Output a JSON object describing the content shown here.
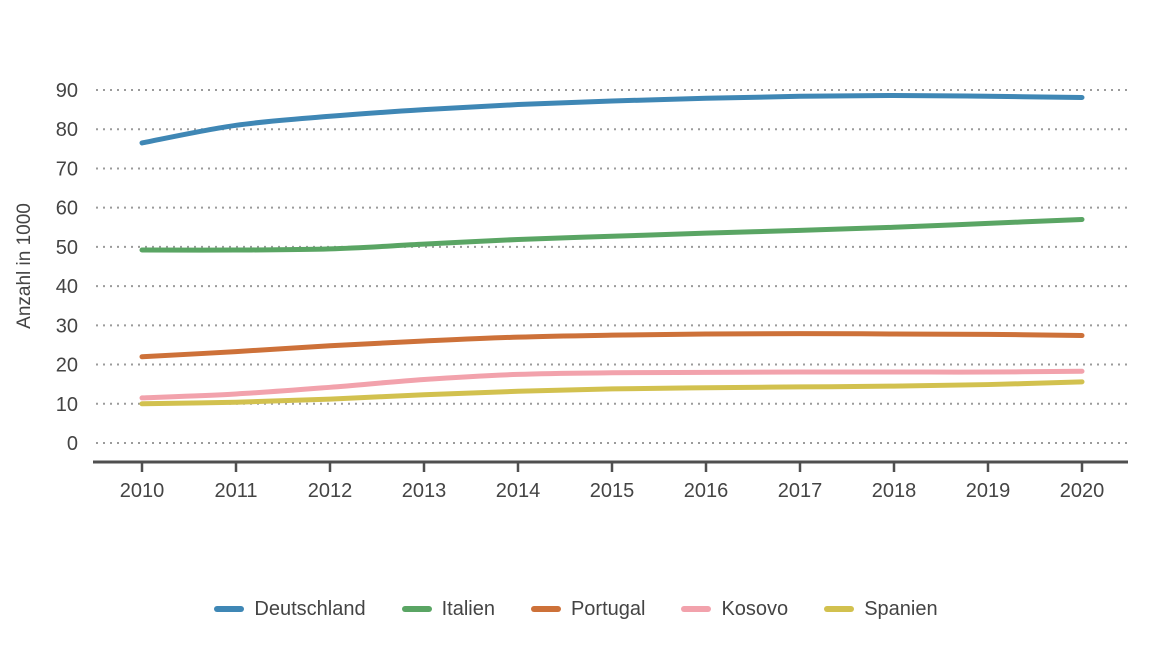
{
  "chart_data": {
    "type": "line",
    "title": "",
    "xlabel": "",
    "ylabel": "Anzahl in 1000",
    "x": [
      2010,
      2011,
      2012,
      2013,
      2014,
      2015,
      2016,
      2017,
      2018,
      2019,
      2020
    ],
    "series": [
      {
        "name": "Deutschland",
        "color": "#3f87b5",
        "values": [
          76.5,
          81.0,
          83.3,
          85.0,
          86.3,
          87.2,
          87.9,
          88.4,
          88.6,
          88.4,
          88.1
        ]
      },
      {
        "name": "Italien",
        "color": "#5aa564",
        "values": [
          49.2,
          49.2,
          49.5,
          50.7,
          51.9,
          52.7,
          53.5,
          54.2,
          55.0,
          56.0,
          57.0
        ]
      },
      {
        "name": "Portugal",
        "color": "#cd7139",
        "values": [
          22.0,
          23.3,
          24.8,
          26.0,
          27.0,
          27.5,
          27.8,
          27.9,
          27.8,
          27.7,
          27.4
        ]
      },
      {
        "name": "Kosovo",
        "color": "#f2a2ac",
        "values": [
          11.5,
          12.5,
          14.2,
          16.2,
          17.5,
          17.9,
          18.0,
          18.1,
          18.1,
          18.1,
          18.3
        ]
      },
      {
        "name": "Spanien",
        "color": "#d2c14f",
        "values": [
          10.0,
          10.4,
          11.2,
          12.3,
          13.2,
          13.8,
          14.1,
          14.3,
          14.5,
          14.9,
          15.6
        ]
      }
    ],
    "ylim": [
      0,
      90
    ],
    "ytick_step": 10,
    "yticks": [
      0,
      10,
      20,
      30,
      40,
      50,
      60,
      70,
      80,
      90
    ],
    "grid": "horizontal-dotted",
    "legend_position": "bottom"
  },
  "style_colors": {
    "gridline": "#9b9b9b",
    "axis_line": "#4f4f4f",
    "tick_text": "#444444",
    "legend_text": "#444444"
  }
}
